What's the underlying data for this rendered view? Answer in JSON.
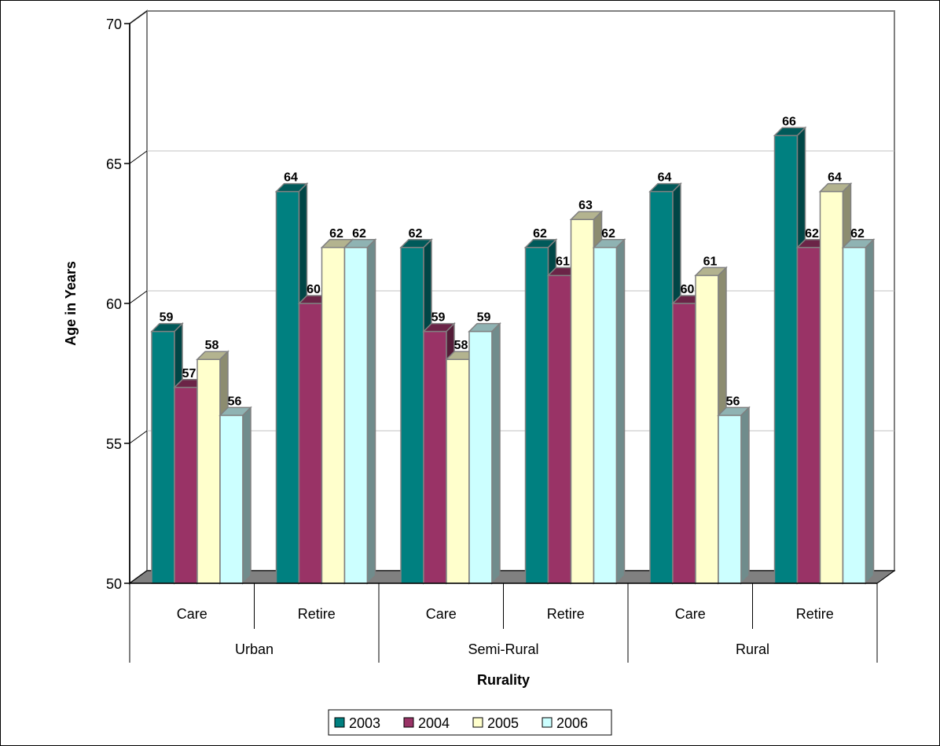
{
  "chart_data": {
    "type": "bar",
    "title": "",
    "xlabel": "Rurality",
    "ylabel": "Age in Years",
    "ylim": [
      50,
      70
    ],
    "yticks": [
      50,
      55,
      60,
      65,
      70
    ],
    "groups": [
      "Urban",
      "Semi-Rural",
      "Rural"
    ],
    "categories": [
      "Care",
      "Retire",
      "Care",
      "Retire",
      "Care",
      "Retire"
    ],
    "series": [
      {
        "name": "2003",
        "color": "#008080",
        "values": [
          59,
          64,
          62,
          62,
          64,
          66
        ]
      },
      {
        "name": "2004",
        "color": "#993366",
        "values": [
          57,
          60,
          59,
          61,
          60,
          62
        ]
      },
      {
        "name": "2005",
        "color": "#FFFFCC",
        "values": [
          58,
          62,
          58,
          63,
          61,
          64
        ]
      },
      {
        "name": "2006",
        "color": "#CCFFFF",
        "values": [
          56,
          62,
          59,
          62,
          56,
          62
        ]
      }
    ],
    "grid": true,
    "legend": "bottom"
  }
}
